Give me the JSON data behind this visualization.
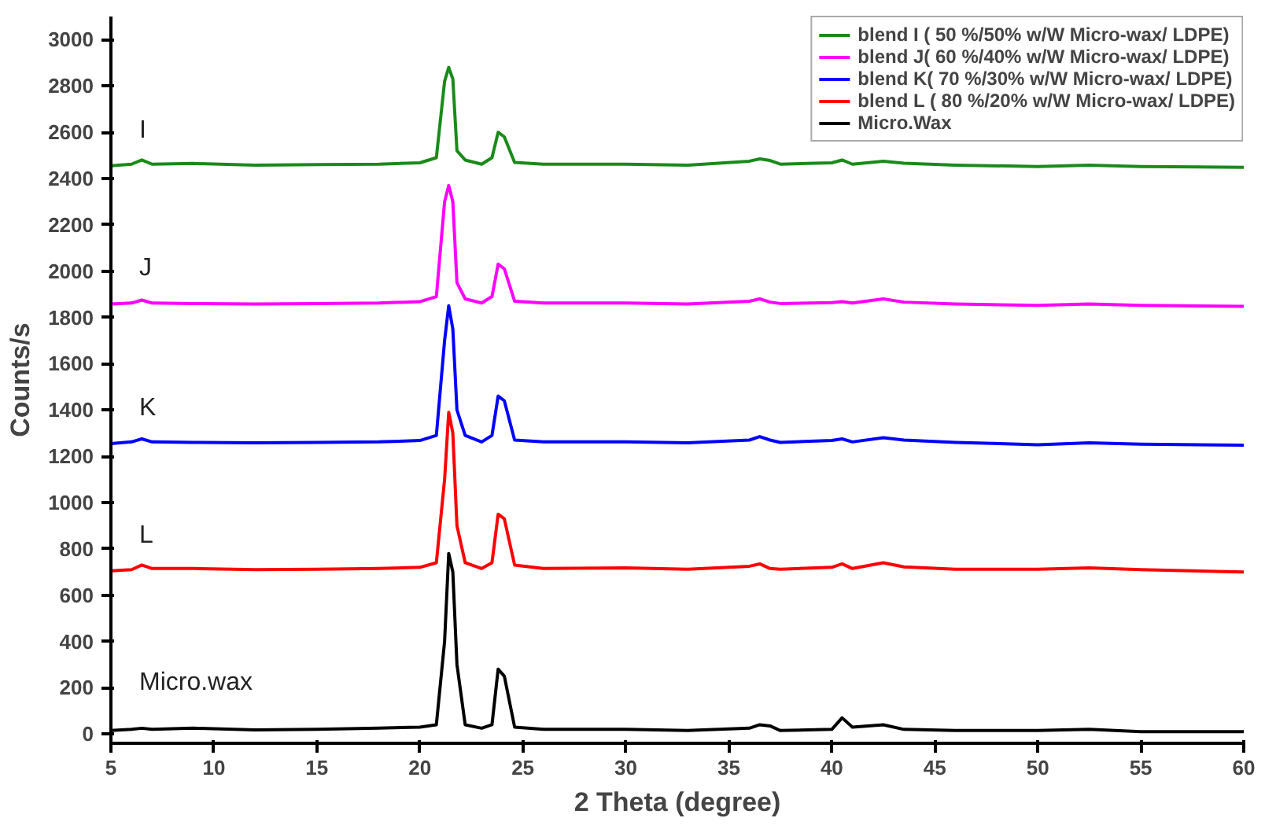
{
  "chart_data": {
    "type": "line",
    "xlabel": "2 Theta (degree)",
    "ylabel": "Counts/s",
    "x": [
      5,
      6,
      6.5,
      7,
      9,
      12,
      15,
      18,
      20,
      20.8,
      21.2,
      21.4,
      21.6,
      21.8,
      22.2,
      23,
      23.5,
      23.8,
      24.1,
      24.6,
      26,
      30,
      33,
      36,
      36.5,
      37,
      37.5,
      40,
      40.5,
      41,
      42.5,
      43.5,
      46,
      50,
      52.5,
      55,
      60
    ],
    "series": [
      {
        "name": "blend I ( 50 %/50% w/W Micro-wax/ LDPE)",
        "color": "#1a8a1a",
        "values": [
          2455,
          2462,
          2480,
          2462,
          2465,
          2458,
          2460,
          2462,
          2468,
          2490,
          2820,
          2880,
          2830,
          2520,
          2480,
          2462,
          2490,
          2600,
          2580,
          2470,
          2462,
          2462,
          2458,
          2475,
          2485,
          2478,
          2462,
          2468,
          2480,
          2462,
          2475,
          2466,
          2458,
          2452,
          2458,
          2452,
          2448
        ]
      },
      {
        "name": "blend J( 60 %/40% w/W Micro-wax/ LDPE)",
        "color": "#ff00ff",
        "values": [
          1858,
          1862,
          1875,
          1862,
          1860,
          1858,
          1860,
          1862,
          1868,
          1890,
          2300,
          2370,
          2300,
          1950,
          1880,
          1862,
          1890,
          2030,
          2010,
          1870,
          1862,
          1862,
          1858,
          1870,
          1880,
          1866,
          1860,
          1864,
          1868,
          1862,
          1880,
          1866,
          1858,
          1852,
          1858,
          1852,
          1848
        ]
      },
      {
        "name": "blend K( 70 %/30% w/W Micro-wax/ LDPE)",
        "color": "#0000ff",
        "values": [
          1255,
          1262,
          1275,
          1262,
          1260,
          1258,
          1260,
          1262,
          1268,
          1290,
          1700,
          1850,
          1750,
          1400,
          1290,
          1262,
          1290,
          1460,
          1440,
          1270,
          1262,
          1262,
          1258,
          1270,
          1285,
          1270,
          1260,
          1268,
          1275,
          1262,
          1280,
          1270,
          1260,
          1250,
          1258,
          1252,
          1248
        ]
      },
      {
        "name": "blend L ( 80 %/20% w/W Micro-wax/ LDPE)",
        "color": "#ff0000",
        "values": [
          705,
          710,
          730,
          715,
          715,
          710,
          712,
          715,
          720,
          740,
          1100,
          1390,
          1300,
          900,
          740,
          715,
          740,
          950,
          930,
          730,
          715,
          718,
          712,
          725,
          735,
          715,
          712,
          720,
          735,
          715,
          740,
          722,
          712,
          712,
          718,
          710,
          700
        ]
      },
      {
        "name": "Micro.Wax",
        "color": "#000000",
        "values": [
          15,
          20,
          25,
          20,
          25,
          18,
          20,
          25,
          30,
          40,
          400,
          780,
          700,
          300,
          40,
          25,
          40,
          280,
          250,
          30,
          20,
          20,
          15,
          25,
          40,
          35,
          15,
          20,
          70,
          30,
          40,
          20,
          15,
          15,
          20,
          10,
          10
        ]
      }
    ],
    "annotations": [
      "I",
      "J",
      "K",
      "L",
      "Micro.wax"
    ],
    "xlim": [
      5,
      60
    ],
    "xticks": [
      5,
      10,
      15,
      20,
      25,
      30,
      35,
      40,
      45,
      50,
      55,
      60
    ],
    "ylim": [
      -40,
      3100
    ],
    "yticks": [
      0,
      200,
      400,
      600,
      800,
      1000,
      1200,
      1400,
      1600,
      1800,
      2000,
      2200,
      2400,
      2600,
      2800,
      3000
    ],
    "grid": false,
    "legend": "top right",
    "line_style": "solid"
  }
}
